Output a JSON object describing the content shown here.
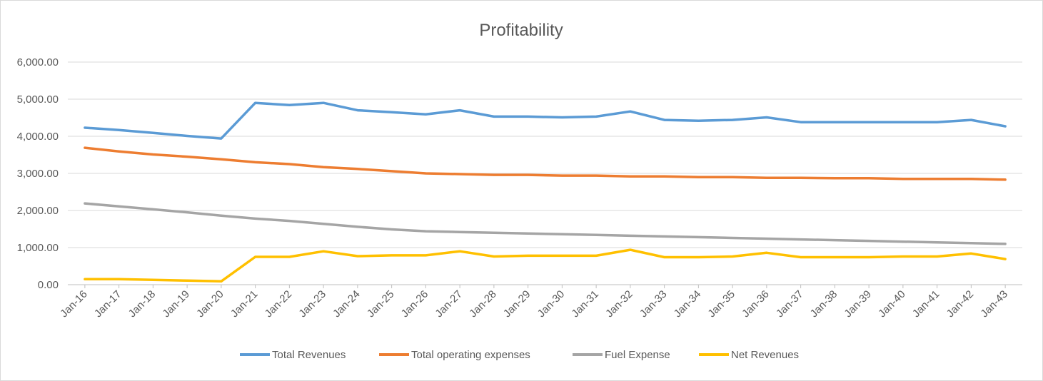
{
  "chart_data": {
    "type": "line",
    "title": "Profitability",
    "xlabel": "",
    "ylabel": "",
    "ylim": [
      0,
      6000
    ],
    "y_ticks": [
      "0.00",
      "1,000.00",
      "2,000.00",
      "3,000.00",
      "4,000.00",
      "5,000.00",
      "6,000.00"
    ],
    "y_tick_values": [
      0,
      1000,
      2000,
      3000,
      4000,
      5000,
      6000
    ],
    "grid": true,
    "legend_position": "bottom",
    "categories": [
      "Jan-16",
      "Jan-17",
      "Jan-18",
      "Jan-19",
      "Jan-20",
      "Jan-21",
      "Jan-22",
      "Jan-23",
      "Jan-24",
      "Jan-25",
      "Jan-26",
      "Jan-27",
      "Jan-28",
      "Jan-29",
      "Jan-30",
      "Jan-31",
      "Jan-32",
      "Jan-33",
      "Jan-34",
      "Jan-35",
      "Jan-36",
      "Jan-37",
      "Jan-38",
      "Jan-39",
      "Jan-40",
      "Jan-41",
      "Jan-42",
      "Jan-43"
    ],
    "series": [
      {
        "name": "Total Revenues",
        "color": "#5b9bd5",
        "values": [
          4230,
          4170,
          4090,
          4010,
          3940,
          4900,
          4840,
          4900,
          4700,
          4650,
          4590,
          4700,
          4530,
          4530,
          4510,
          4530,
          4670,
          4440,
          4420,
          4440,
          4510,
          4380,
          4380,
          4380,
          4380,
          4380,
          4440,
          4270
        ]
      },
      {
        "name": "Total operating expenses",
        "color": "#ed7d31",
        "values": [
          3690,
          3590,
          3510,
          3450,
          3380,
          3300,
          3250,
          3170,
          3120,
          3060,
          3000,
          2980,
          2960,
          2960,
          2940,
          2940,
          2920,
          2920,
          2900,
          2900,
          2880,
          2880,
          2870,
          2870,
          2850,
          2850,
          2850,
          2830
        ]
      },
      {
        "name": "Fuel Expense",
        "color": "#a5a5a5",
        "values": [
          2190,
          2110,
          2030,
          1950,
          1860,
          1780,
          1720,
          1640,
          1560,
          1490,
          1440,
          1420,
          1400,
          1380,
          1360,
          1340,
          1320,
          1300,
          1280,
          1260,
          1240,
          1220,
          1200,
          1180,
          1160,
          1140,
          1120,
          1100
        ]
      },
      {
        "name": "Net Revenues",
        "color": "#ffc000",
        "values": [
          150,
          150,
          130,
          110,
          90,
          750,
          750,
          900,
          770,
          790,
          790,
          900,
          760,
          780,
          780,
          780,
          940,
          740,
          740,
          760,
          860,
          740,
          740,
          740,
          760,
          760,
          840,
          690
        ]
      }
    ]
  }
}
